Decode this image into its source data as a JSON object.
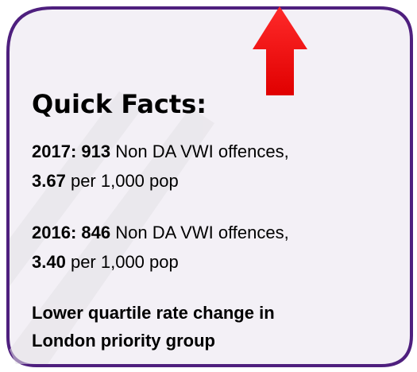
{
  "card": {
    "title": "Quick Facts:",
    "facts": [
      {
        "year": "2017:",
        "count": "913",
        "count_text": "Non DA VWI offences,",
        "rate": "3.67",
        "rate_text": "per 1,000 pop"
      },
      {
        "year": "2016:",
        "count": "846",
        "count_text": "Non DA VWI offences,",
        "rate": "3.40",
        "rate_text": "per 1,000 pop"
      }
    ],
    "note": [
      "Lower quartile rate change in",
      "London priority group"
    ]
  }
}
